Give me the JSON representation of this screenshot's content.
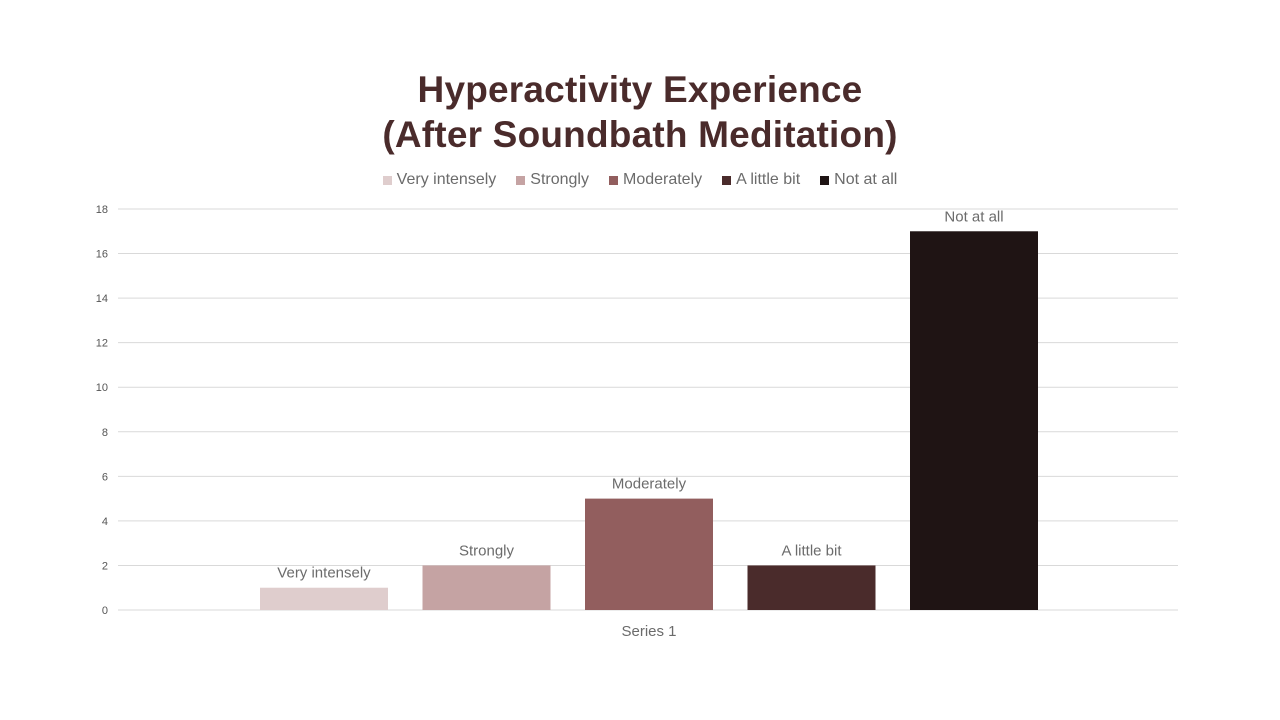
{
  "chart_data": {
    "type": "bar",
    "title": [
      "Hyperactivity Experience",
      "(After Soundbath Meditation)"
    ],
    "categories": [
      "Series 1"
    ],
    "series": [
      {
        "name": "Very intensely",
        "values": [
          1
        ],
        "color": "#dfcdcd"
      },
      {
        "name": "Strongly",
        "values": [
          2
        ],
        "color": "#c5a3a3"
      },
      {
        "name": "Moderately",
        "values": [
          5
        ],
        "color": "#925e5e"
      },
      {
        "name": "A little bit",
        "values": [
          2
        ],
        "color": "#4a2b2b"
      },
      {
        "name": "Not at all",
        "values": [
          17
        ],
        "color": "#1f1414"
      }
    ],
    "data_labels": [
      "Very intensely",
      "Strongly",
      "Moderately",
      "A little bit",
      "Not at all"
    ],
    "ylim": [
      0,
      18
    ],
    "yticks": [
      "0",
      "2",
      "4",
      "6",
      "8",
      "10",
      "12",
      "14",
      "16",
      "18"
    ],
    "xlabel": "",
    "ylabel": "",
    "grid": true,
    "legend_position": "top"
  },
  "colors": {
    "title": "#4a2b2b",
    "grid": "#d9d9d9",
    "axis_text": "#555555",
    "label_text": "#6b6b6b"
  }
}
